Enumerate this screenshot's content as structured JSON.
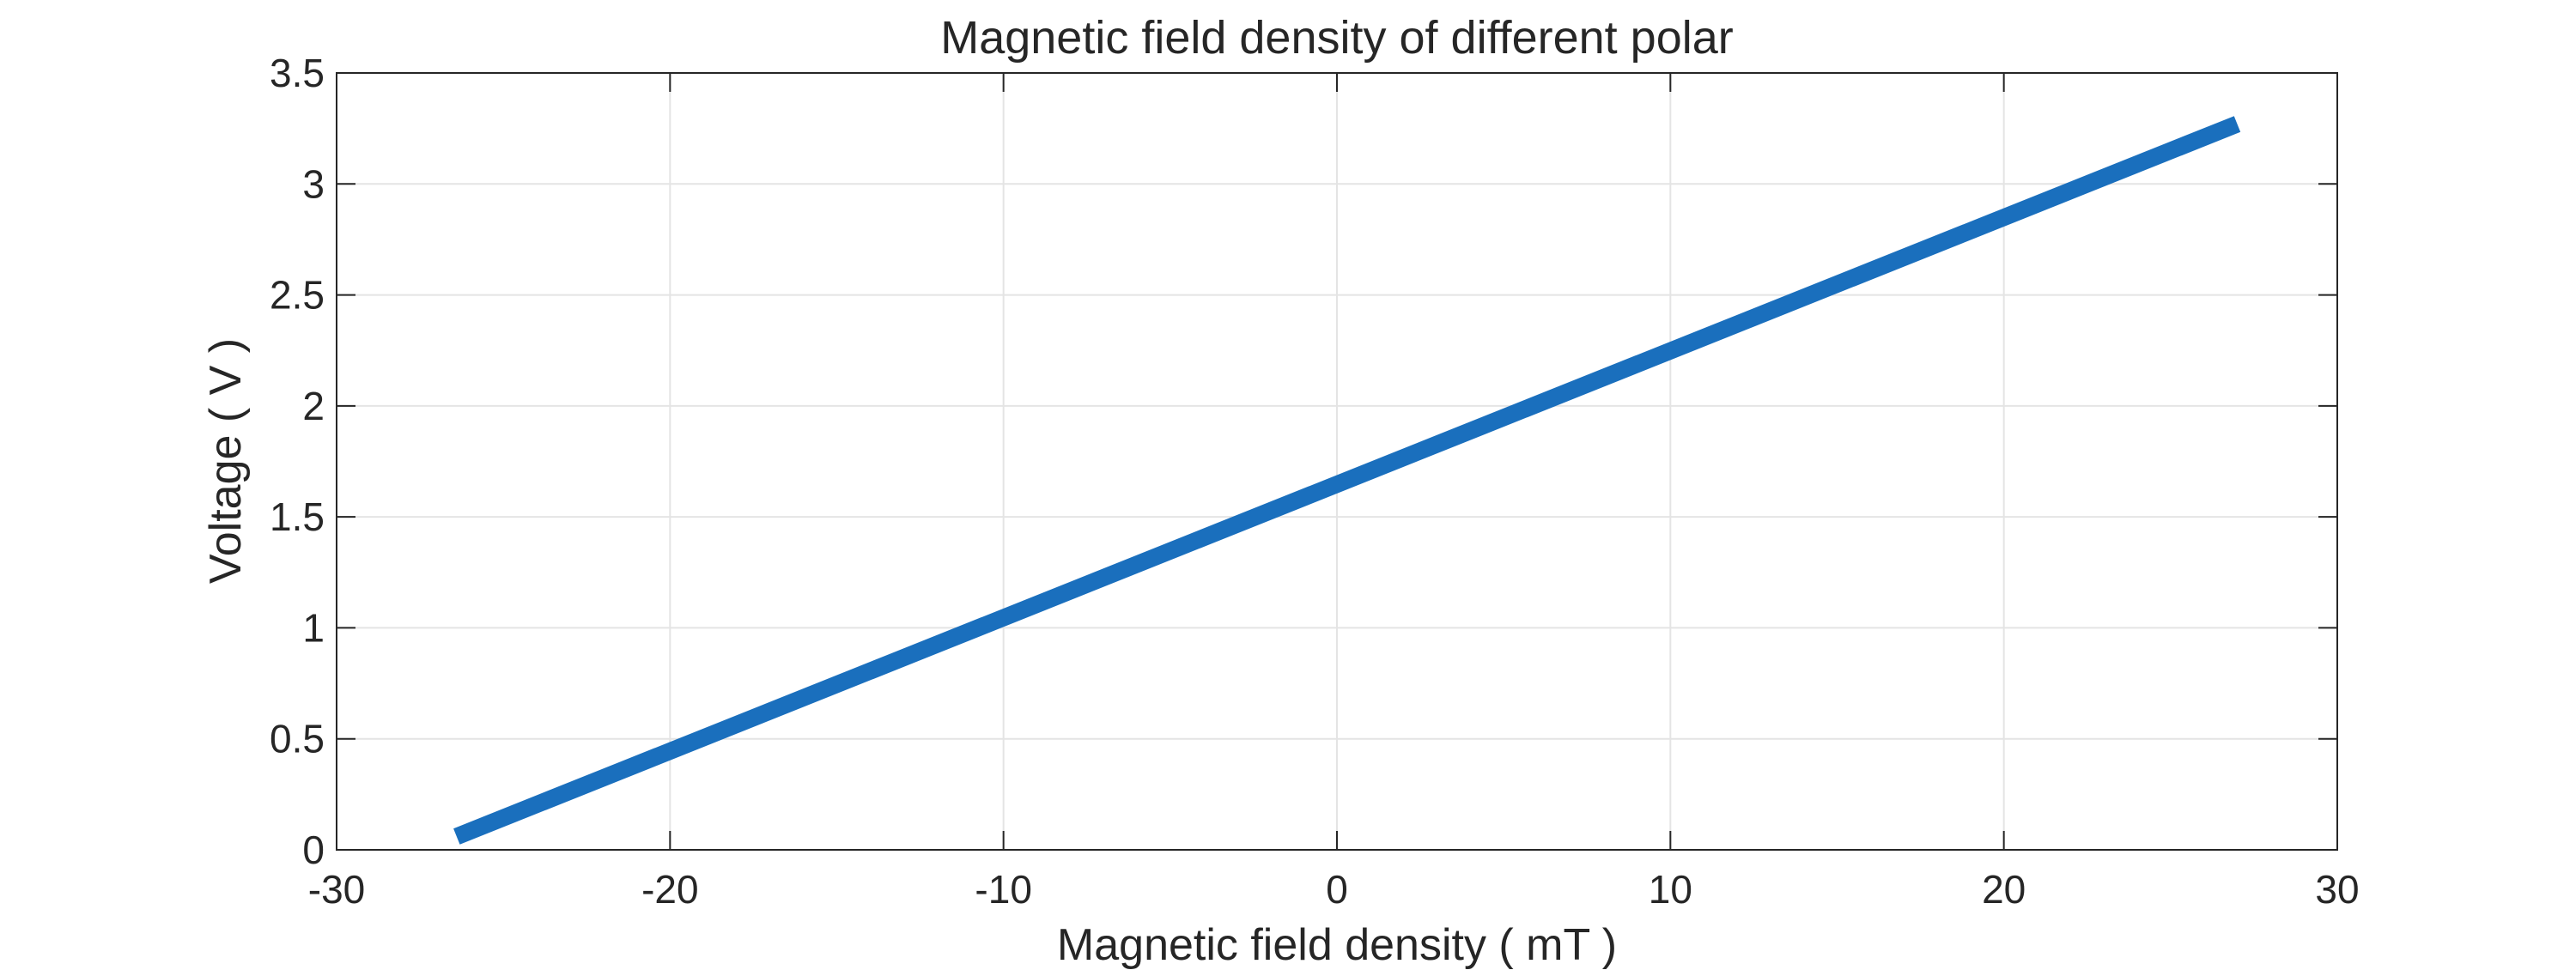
{
  "chart_data": {
    "type": "line",
    "title": "Magnetic field density of different polar",
    "xlabel": "Magnetic field density ( mT )",
    "ylabel": "Voltage ( V )",
    "xlim": [
      -30,
      30
    ],
    "ylim": [
      0,
      3.5
    ],
    "xticks": [
      -30,
      -20,
      -10,
      0,
      10,
      20,
      30
    ],
    "yticks": [
      0,
      0.5,
      1,
      1.5,
      2,
      2.5,
      3,
      3.5
    ],
    "xtick_labels": [
      "-30",
      "-20",
      "-10",
      "0",
      "10",
      "20",
      "30"
    ],
    "ytick_labels": [
      "0",
      "0.5",
      "1",
      "1.5",
      "2",
      "2.5",
      "3",
      "3.5"
    ],
    "grid": true,
    "series": [
      {
        "color": "#1a6fbd",
        "x": [
          -26.4,
          27.0
        ],
        "y": [
          0.06,
          3.27
        ]
      }
    ]
  }
}
